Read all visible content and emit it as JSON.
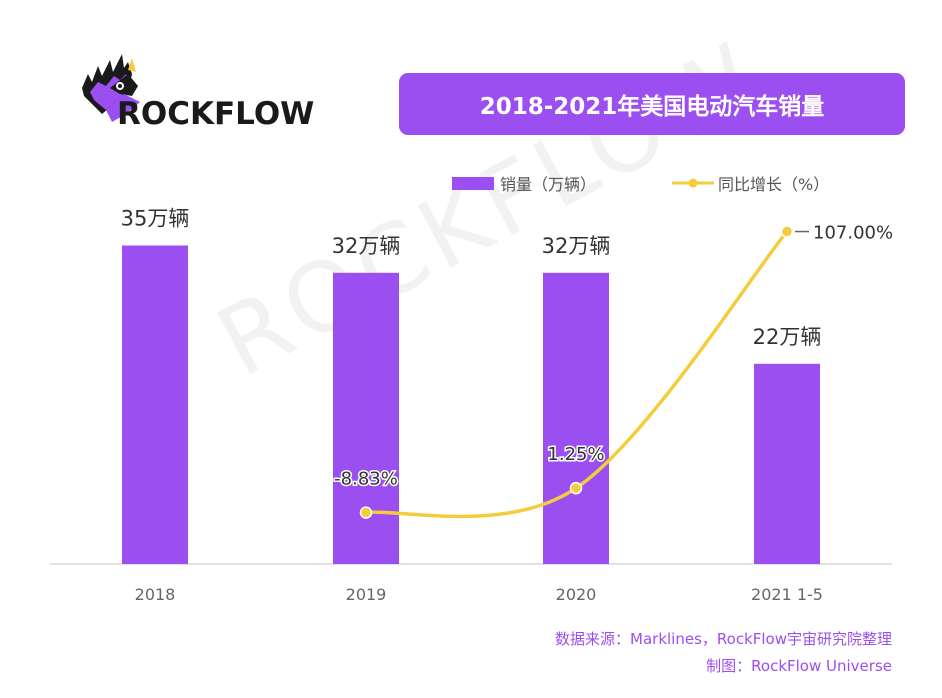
{
  "brand": {
    "name": "ROCKFLOW",
    "watermark": "ROCKFLOW"
  },
  "colors": {
    "bar": "#9b4ff0",
    "line": "#f5cd3c",
    "axis": "#d8d8d8",
    "text_dark": "#333333",
    "text_gray": "#666666"
  },
  "chart_data": {
    "type": "bar",
    "title": "2018-2021年美国电动汽车销量",
    "categories": [
      "2018",
      "2019",
      "2020",
      "2021 1-5"
    ],
    "series": [
      {
        "name": "销量（万辆）",
        "type": "bar",
        "values": [
          35,
          32,
          32,
          22
        ],
        "labels": [
          "35万辆",
          "32万辆",
          "32万辆",
          "22万辆"
        ]
      },
      {
        "name": "同比增长（%）",
        "type": "line",
        "axis": "secondary",
        "values": [
          null,
          -8.83,
          1.25,
          107.0
        ],
        "labels": [
          "",
          "-8.83%",
          "1.25%",
          "107.00%"
        ]
      }
    ],
    "ylim": [
      0,
      40
    ],
    "y2lim": [
      -30,
      120
    ],
    "legend": "top-right"
  },
  "footer": {
    "source": "数据来源：Marklines，RockFlow宇宙研究院整理",
    "credit": "制图：RockFlow Universe"
  }
}
